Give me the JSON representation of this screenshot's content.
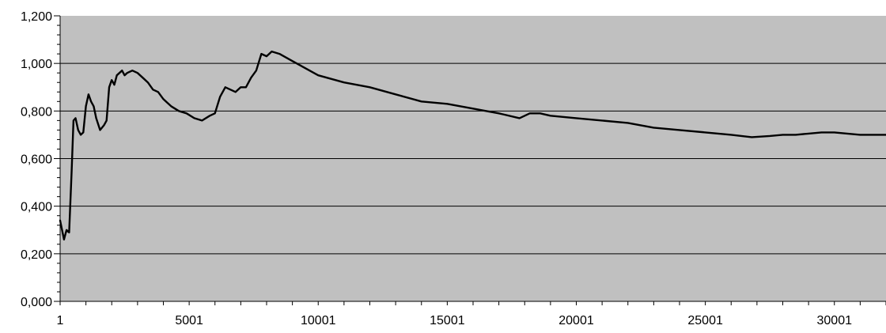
{
  "chart_data": {
    "type": "line",
    "title": "",
    "xlabel": "",
    "ylabel": "",
    "xlim": [
      1,
      32001
    ],
    "ylim": [
      0,
      1.2
    ],
    "x_ticks": [
      1,
      5001,
      10001,
      15001,
      20001,
      25001,
      30001
    ],
    "x_tick_labels": [
      "1",
      "5001",
      "10001",
      "15001",
      "20001",
      "25001",
      "30001"
    ],
    "y_ticks": [
      0,
      0.2,
      0.4,
      0.6,
      0.8,
      1.0,
      1.2
    ],
    "y_tick_labels": [
      "0,000",
      "0,200",
      "0,400",
      "0,600",
      "0,800",
      "1,000",
      "1,200"
    ],
    "grid": "horizontal major gridlines",
    "legend": "none",
    "colors": {
      "plot_background": "#c0c0c0",
      "line": "#000000",
      "gridline": "#000000"
    },
    "series": [
      {
        "x": [
          1,
          150,
          250,
          350,
          450,
          520,
          600,
          700,
          800,
          900,
          1000,
          1100,
          1200,
          1300,
          1400,
          1550,
          1700,
          1800,
          1900,
          2000,
          2100,
          2200,
          2300,
          2400,
          2500,
          2600,
          2800,
          3000,
          3200,
          3400,
          3600,
          3800,
          4000,
          4300,
          4600,
          4900,
          5200,
          5500,
          5800,
          6000,
          6200,
          6400,
          6600,
          6800,
          7000,
          7200,
          7400,
          7600,
          7800,
          8000,
          8200,
          8500,
          9000,
          9500,
          10000,
          11000,
          12000,
          13000,
          14000,
          15000,
          16000,
          17000,
          17800,
          18200,
          18600,
          19000,
          20000,
          21000,
          22000,
          23000,
          24000,
          25000,
          26000,
          26800,
          27500,
          28000,
          28500,
          29000,
          29500,
          30000,
          30500,
          31000,
          31500,
          32000
        ],
        "y": [
          0.34,
          0.26,
          0.3,
          0.29,
          0.55,
          0.76,
          0.77,
          0.72,
          0.7,
          0.71,
          0.82,
          0.87,
          0.84,
          0.82,
          0.77,
          0.72,
          0.74,
          0.76,
          0.9,
          0.93,
          0.91,
          0.95,
          0.96,
          0.97,
          0.95,
          0.96,
          0.97,
          0.96,
          0.94,
          0.92,
          0.89,
          0.88,
          0.85,
          0.82,
          0.8,
          0.79,
          0.77,
          0.76,
          0.78,
          0.79,
          0.86,
          0.9,
          0.89,
          0.88,
          0.9,
          0.9,
          0.94,
          0.97,
          1.04,
          1.03,
          1.05,
          1.04,
          1.01,
          0.98,
          0.95,
          0.92,
          0.9,
          0.87,
          0.84,
          0.83,
          0.81,
          0.79,
          0.77,
          0.79,
          0.79,
          0.78,
          0.77,
          0.76,
          0.75,
          0.73,
          0.72,
          0.71,
          0.7,
          0.69,
          0.695,
          0.7,
          0.7,
          0.705,
          0.71,
          0.71,
          0.705,
          0.7,
          0.7,
          0.7
        ]
      }
    ]
  }
}
